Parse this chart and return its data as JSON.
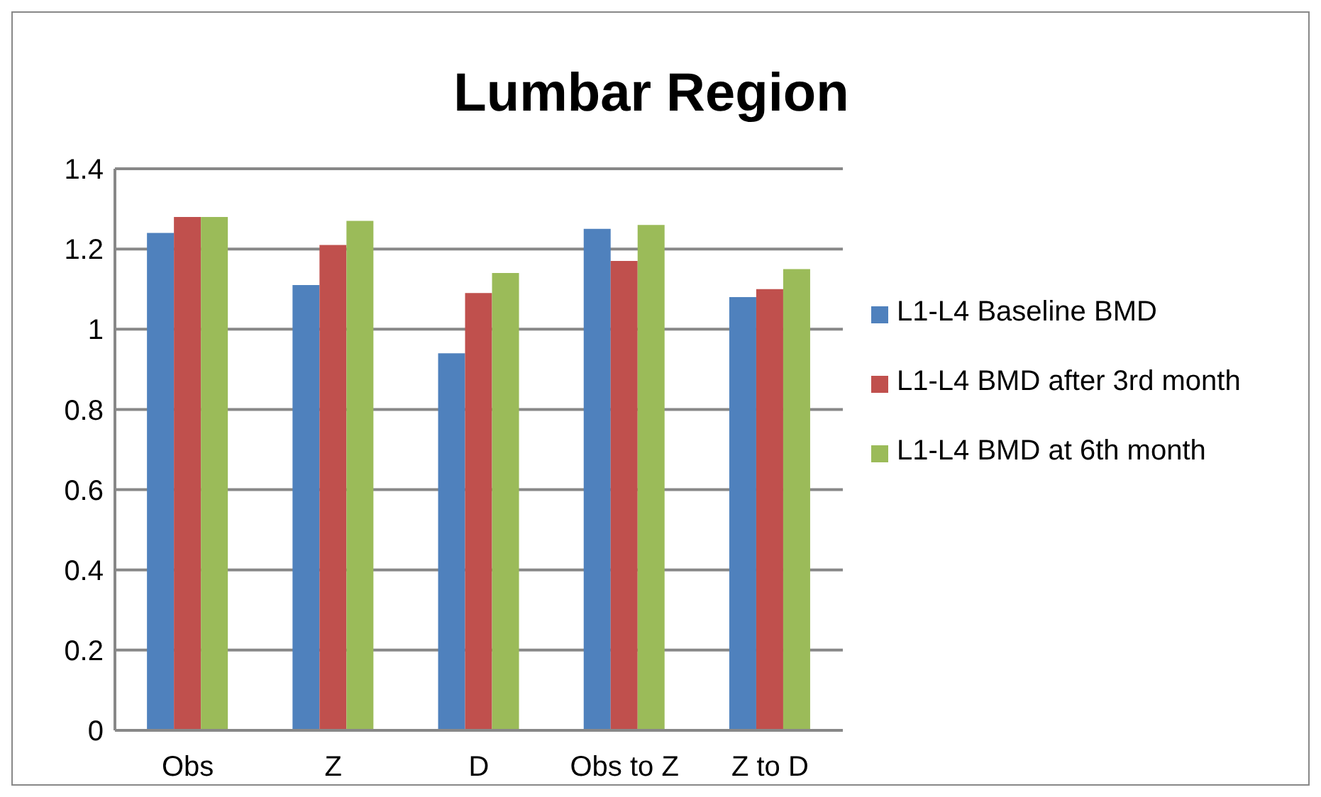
{
  "chart_data": {
    "type": "bar",
    "title": "Lumbar Region",
    "categories": [
      "Obs",
      "Z",
      "D",
      "Obs to Z",
      "Z to D"
    ],
    "series": [
      {
        "name": "L1-L4 Baseline BMD",
        "color": "#4f81bd",
        "values": [
          1.24,
          1.11,
          0.94,
          1.25,
          1.08
        ]
      },
      {
        "name": "L1-L4 BMD after 3rd month",
        "color": "#c0504d",
        "values": [
          1.28,
          1.21,
          1.09,
          1.17,
          1.1
        ]
      },
      {
        "name": "L1-L4 BMD at 6th month",
        "color": "#9bbb59",
        "values": [
          1.28,
          1.27,
          1.14,
          1.26,
          1.15
        ]
      }
    ],
    "ylim": [
      0,
      1.4
    ],
    "yticks": [
      0,
      0.2,
      0.4,
      0.6,
      0.8,
      1,
      1.2,
      1.4
    ],
    "grid": "y",
    "legend": "right"
  }
}
